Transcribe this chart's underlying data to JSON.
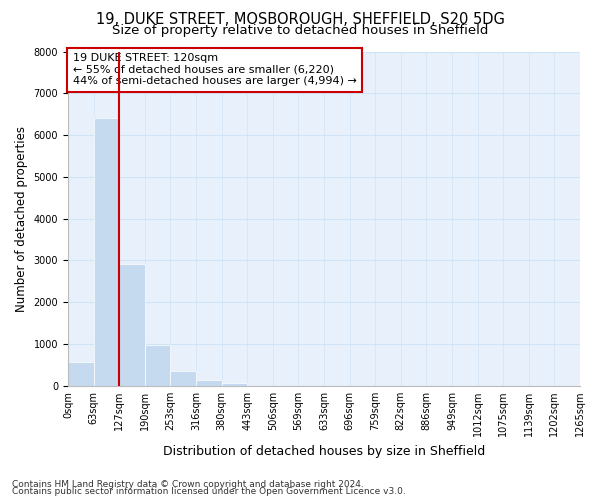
{
  "title_line1": "19, DUKE STREET, MOSBOROUGH, SHEFFIELD, S20 5DG",
  "title_line2": "Size of property relative to detached houses in Sheffield",
  "xlabel": "Distribution of detached houses by size in Sheffield",
  "ylabel": "Number of detached properties",
  "bar_values": [
    580,
    6400,
    2920,
    970,
    360,
    140,
    75,
    0,
    0,
    0,
    0,
    0,
    0,
    0,
    0,
    0,
    0,
    0,
    0,
    0
  ],
  "bar_labels": [
    "0sqm",
    "63sqm",
    "127sqm",
    "190sqm",
    "253sqm",
    "316sqm",
    "380sqm",
    "443sqm",
    "506sqm",
    "569sqm",
    "633sqm",
    "696sqm",
    "759sqm",
    "822sqm",
    "886sqm",
    "949sqm",
    "1012sqm",
    "1075sqm",
    "1139sqm",
    "1202sqm",
    "1265sqm"
  ],
  "bar_color": "#c5d9ef",
  "grid_color": "#d0e4f7",
  "background_color": "#e8f1fb",
  "figure_background": "#ffffff",
  "vline_color": "#cc0000",
  "annotation_title": "19 DUKE STREET: 120sqm",
  "annotation_line1": "← 55% of detached houses are smaller (6,220)",
  "annotation_line2": "44% of semi-detached houses are larger (4,994) →",
  "annotation_box_color": "#ffffff",
  "annotation_box_edge": "#cc0000",
  "ylim": [
    0,
    8000
  ],
  "yticks": [
    0,
    1000,
    2000,
    3000,
    4000,
    5000,
    6000,
    7000,
    8000
  ],
  "footnote1": "Contains HM Land Registry data © Crown copyright and database right 2024.",
  "footnote2": "Contains public sector information licensed under the Open Government Licence v3.0.",
  "title_fontsize": 10.5,
  "subtitle_fontsize": 9.5,
  "tick_fontsize": 7,
  "ylabel_fontsize": 8.5,
  "xlabel_fontsize": 9,
  "footnote_fontsize": 6.5
}
